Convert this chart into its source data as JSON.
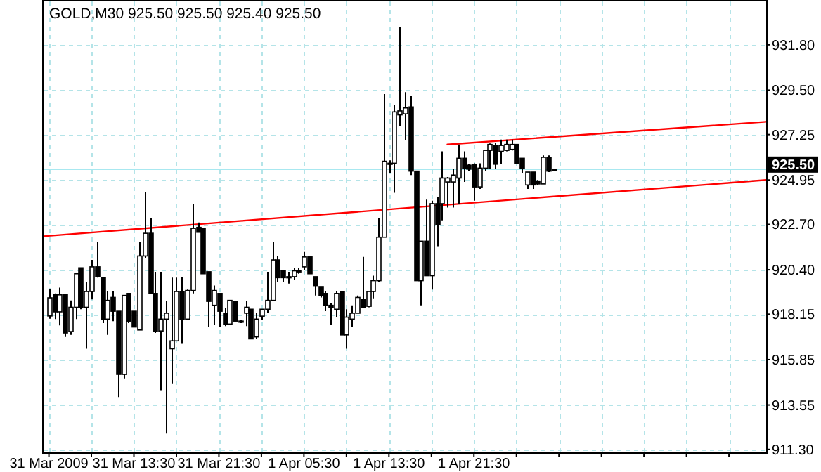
{
  "chart_data": {
    "type": "candlestick",
    "title": "GOLD,M30 925.50 925.50 925.40 925.50",
    "x": [
      "2009-03-31T05:30",
      "2009-03-31T06:00",
      "2009-03-31T06:30",
      "2009-03-31T07:00",
      "2009-03-31T07:30",
      "2009-03-31T08:00",
      "2009-03-31T08:30",
      "2009-03-31T09:00",
      "2009-03-31T09:30",
      "2009-03-31T10:00",
      "2009-03-31T10:30",
      "2009-03-31T11:00",
      "2009-03-31T11:30",
      "2009-03-31T12:00",
      "2009-03-31T12:30",
      "2009-03-31T13:00",
      "2009-03-31T13:30",
      "2009-03-31T14:00",
      "2009-03-31T14:30",
      "2009-03-31T15:00",
      "2009-03-31T15:30",
      "2009-03-31T16:00",
      "2009-03-31T16:30",
      "2009-03-31T17:00",
      "2009-03-31T17:30",
      "2009-03-31T18:00",
      "2009-03-31T18:30",
      "2009-03-31T19:00",
      "2009-03-31T19:30",
      "2009-03-31T20:00",
      "2009-03-31T20:30",
      "2009-03-31T21:00",
      "2009-03-31T21:30",
      "2009-03-31T22:00",
      "2009-03-31T22:30",
      "2009-03-31T23:00",
      "2009-03-31T23:30",
      "2009-04-01T00:00",
      "2009-04-01T00:30",
      "2009-04-01T01:00",
      "2009-04-01T01:30",
      "2009-04-01T02:00",
      "2009-04-01T02:30",
      "2009-04-01T03:00",
      "2009-04-01T03:30",
      "2009-04-01T04:00",
      "2009-04-01T04:30",
      "2009-04-01T05:00",
      "2009-04-01T05:30",
      "2009-04-01T06:00",
      "2009-04-01T06:30",
      "2009-04-01T07:00",
      "2009-04-01T07:30",
      "2009-04-01T08:00",
      "2009-04-01T08:30",
      "2009-04-01T09:00",
      "2009-04-01T09:30",
      "2009-04-01T10:00",
      "2009-04-01T10:30",
      "2009-04-01T11:00",
      "2009-04-01T11:30",
      "2009-04-01T12:00",
      "2009-04-01T12:30",
      "2009-04-01T13:00",
      "2009-04-01T13:30",
      "2009-04-01T14:00",
      "2009-04-01T14:30",
      "2009-04-01T15:00",
      "2009-04-01T15:30",
      "2009-04-01T16:00",
      "2009-04-01T16:30",
      "2009-04-01T17:00",
      "2009-04-01T17:30",
      "2009-04-01T18:00",
      "2009-04-01T18:30",
      "2009-04-01T19:00",
      "2009-04-01T19:30",
      "2009-04-01T20:00",
      "2009-04-01T20:30",
      "2009-04-01T21:00",
      "2009-04-01T21:30",
      "2009-04-01T22:00",
      "2009-04-01T22:30",
      "2009-04-01T23:00",
      "2009-04-01T23:30",
      "2009-04-02T00:00",
      "2009-04-02T00:30",
      "2009-04-02T01:00",
      "2009-04-02T01:30",
      "2009-04-02T02:00",
      "2009-04-02T02:30",
      "2009-04-02T03:00",
      "2009-04-02T03:30",
      "2009-04-02T04:00",
      "2009-04-02T04:30",
      "2009-04-02T05:00"
    ],
    "ohlc": [
      [
        918.06,
        919.41,
        917.92,
        918.98
      ],
      [
        919.13,
        919.2,
        917.9,
        918.27
      ],
      [
        918.27,
        919.5,
        917.58,
        919.13
      ],
      [
        919.13,
        919.13,
        917.0,
        917.2
      ],
      [
        917.27,
        918.85,
        917.1,
        918.5
      ],
      [
        918.5,
        920.2,
        917.9,
        920.2
      ],
      [
        920.5,
        920.5,
        918.4,
        918.5
      ],
      [
        918.5,
        919.8,
        916.4,
        919.3
      ],
      [
        919.3,
        920.9,
        918.9,
        920.55
      ],
      [
        920.55,
        921.8,
        920.0,
        920.05
      ],
      [
        920.0,
        920.0,
        917.7,
        917.9
      ],
      [
        917.9,
        919.3,
        917.1,
        918.85
      ],
      [
        919.0,
        919.3,
        917.8,
        918.3
      ],
      [
        918.3,
        918.3,
        913.95,
        915.1
      ],
      [
        915.1,
        919.1,
        914.9,
        919.1
      ],
      [
        919.2,
        919.2,
        917.7,
        917.8
      ],
      [
        918.3,
        918.3,
        917.5,
        917.5
      ],
      [
        917.35,
        921.8,
        917.35,
        921.1
      ],
      [
        921.1,
        924.35,
        921.0,
        922.25
      ],
      [
        922.25,
        923.0,
        919.2,
        919.2
      ],
      [
        919.2,
        920.3,
        917.2,
        917.3
      ],
      [
        917.3,
        920.3,
        914.3,
        917.9
      ],
      [
        917.9,
        918.8,
        912.1,
        918.2
      ],
      [
        916.4,
        920.0,
        914.65,
        916.8
      ],
      [
        916.8,
        920.0,
        916.8,
        919.3
      ],
      [
        919.3,
        920.05,
        916.65,
        917.9
      ],
      [
        917.9,
        919.4,
        917.9,
        919.35
      ],
      [
        919.35,
        923.75,
        919.2,
        922.5
      ],
      [
        922.55,
        922.8,
        922.3,
        922.3
      ],
      [
        922.5,
        922.5,
        920.2,
        920.2
      ],
      [
        920.3,
        920.3,
        917.5,
        918.8
      ],
      [
        918.6,
        919.6,
        917.6,
        919.35
      ],
      [
        919.2,
        919.2,
        917.5,
        918.3
      ],
      [
        918.2,
        918.45,
        917.55,
        917.65
      ],
      [
        917.65,
        918.85,
        917.65,
        918.85
      ],
      [
        918.8,
        918.8,
        917.8,
        917.8
      ],
      [
        917.8,
        917.85,
        917.7,
        917.75
      ],
      [
        918.2,
        918.8,
        917.55,
        918.5
      ],
      [
        918.4,
        918.4,
        916.9,
        916.9
      ],
      [
        917.0,
        918.2,
        916.9,
        917.9
      ],
      [
        918.05,
        918.4,
        917.85,
        918.4
      ],
      [
        918.4,
        920.3,
        918.2,
        918.85
      ],
      [
        918.85,
        921.8,
        918.85,
        920.9
      ],
      [
        920.9,
        921.1,
        919.8,
        920.0
      ],
      [
        920.35,
        920.35,
        919.8,
        920.0
      ],
      [
        920.05,
        920.3,
        919.7,
        920.0
      ],
      [
        920.05,
        920.5,
        919.9,
        920.35
      ],
      [
        920.3,
        920.5,
        920.2,
        920.35
      ],
      [
        920.55,
        921.3,
        920.4,
        921.05
      ],
      [
        921.05,
        921.05,
        920.2,
        920.2
      ],
      [
        920.05,
        920.05,
        919.1,
        919.6
      ],
      [
        919.55,
        919.55,
        919.0,
        919.1
      ],
      [
        919.2,
        919.3,
        918.3,
        918.6
      ],
      [
        918.6,
        918.7,
        917.6,
        918.5
      ],
      [
        918.4,
        919.3,
        918.0,
        919.2
      ],
      [
        919.3,
        919.3,
        917.1,
        917.1
      ],
      [
        917.1,
        918.4,
        916.4,
        918.0
      ],
      [
        917.9,
        918.6,
        917.5,
        918.2
      ],
      [
        918.2,
        919.1,
        918.2,
        919.0
      ],
      [
        918.9,
        921.05,
        918.5,
        918.5
      ],
      [
        918.55,
        919.3,
        918.5,
        919.3
      ],
      [
        919.3,
        920.1,
        918.95,
        919.85
      ],
      [
        919.85,
        923.0,
        919.8,
        922.05
      ],
      [
        922.05,
        929.3,
        922.05,
        925.9
      ],
      [
        925.8,
        925.95,
        925.3,
        925.8
      ],
      [
        925.8,
        928.75,
        924.3,
        928.4
      ],
      [
        928.25,
        932.7,
        927.7,
        928.45
      ],
      [
        928.3,
        929.4,
        926.95,
        928.6
      ],
      [
        928.65,
        929.2,
        925.2,
        925.4
      ],
      [
        925.4,
        925.4,
        919.85,
        919.85
      ],
      [
        919.85,
        921.85,
        918.6,
        921.85
      ],
      [
        921.85,
        923.95,
        920.1,
        920.1
      ],
      [
        920.1,
        923.9,
        919.4,
        923.75
      ],
      [
        923.75,
        924.1,
        921.6,
        922.7
      ],
      [
        923.75,
        926.4,
        922.9,
        925.05
      ],
      [
        924.85,
        925.1,
        923.55,
        925.05
      ],
      [
        924.85,
        925.5,
        923.55,
        925.2
      ],
      [
        925.05,
        926.75,
        923.75,
        926.05
      ],
      [
        926.05,
        926.4,
        924.85,
        925.55
      ],
      [
        925.7,
        925.75,
        925.4,
        925.5
      ],
      [
        925.75,
        925.8,
        923.9,
        924.6
      ],
      [
        924.6,
        925.8,
        924.5,
        925.55
      ],
      [
        925.55,
        926.45,
        925.4,
        926.45
      ],
      [
        926.45,
        926.8,
        925.5,
        926.75
      ],
      [
        926.7,
        926.85,
        925.5,
        925.75
      ],
      [
        926.4,
        927.0,
        925.75,
        926.7
      ],
      [
        926.45,
        927.0,
        926.4,
        926.75
      ],
      [
        926.5,
        927.0,
        926.45,
        926.75
      ],
      [
        926.75,
        926.75,
        925.75,
        925.8
      ],
      [
        926.05,
        926.05,
        925.3,
        925.55
      ],
      [
        924.7,
        925.35,
        924.5,
        925.35
      ],
      [
        925.35,
        925.35,
        924.5,
        924.7
      ],
      [
        924.9,
        924.95,
        924.7,
        924.75
      ],
      [
        924.75,
        926.2,
        924.75,
        926.1
      ],
      [
        926.1,
        926.2,
        925.35,
        925.4
      ],
      [
        925.5,
        925.5,
        925.4,
        925.5
      ]
    ],
    "series": [
      {
        "type": "line",
        "color": "#ff0000",
        "x": [
          "2009-03-31T05:00",
          "2009-04-03T01:00"
        ],
        "values": [
          922.1,
          924.95
        ]
      },
      {
        "type": "line",
        "color": "#ff0000",
        "x": [
          "2009-04-01T19:00",
          "2009-04-03T01:00"
        ],
        "values": [
          926.75,
          927.9
        ]
      }
    ],
    "xlim": [
      "2009-03-31T05:00",
      "2009-04-03T01:00"
    ],
    "xticks": [
      {
        "value": "2009-03-31T05:30",
        "label": "31 Mar 2009"
      },
      {
        "value": "2009-03-31T09:30",
        "label": null
      },
      {
        "value": "2009-03-31T13:30",
        "label": "31 Mar 13:30"
      },
      {
        "value": "2009-03-31T17:30",
        "label": null
      },
      {
        "value": "2009-03-31T21:30",
        "label": "31 Mar 21:30"
      },
      {
        "value": "2009-04-01T01:30",
        "label": null
      },
      {
        "value": "2009-04-01T05:30",
        "label": "1 Apr 05:30"
      },
      {
        "value": "2009-04-01T09:30",
        "label": null
      },
      {
        "value": "2009-04-01T13:30",
        "label": "1 Apr 13:30"
      },
      {
        "value": "2009-04-01T17:30",
        "label": null
      },
      {
        "value": "2009-04-01T21:30",
        "label": "1 Apr 21:30"
      },
      {
        "value": "2009-04-02T01:30",
        "label": null
      },
      {
        "value": "2009-04-02T05:30",
        "label": null
      },
      {
        "value": "2009-04-02T09:30",
        "label": null
      },
      {
        "value": "2009-04-02T13:30",
        "label": null
      },
      {
        "value": "2009-04-02T17:30",
        "label": null
      },
      {
        "value": "2009-04-02T21:30",
        "label": null
      }
    ],
    "ylim": [
      911.15,
      934.0
    ],
    "yticks": [
      {
        "value": 911.3,
        "label": "911.30"
      },
      913.55,
      915.85,
      918.15,
      {
        "value": 920.4,
        "label": "920.40"
      },
      {
        "value": 922.7,
        "label": "922.70"
      },
      924.95,
      927.25,
      {
        "value": 929.5,
        "label": "929.50"
      },
      {
        "value": 931.8,
        "label": "931.80"
      }
    ],
    "grid": true,
    "ref_lines": [
      {
        "axis": "y",
        "value": 925.5,
        "label": "925.50",
        "color": "#a8e8f0"
      }
    ]
  }
}
